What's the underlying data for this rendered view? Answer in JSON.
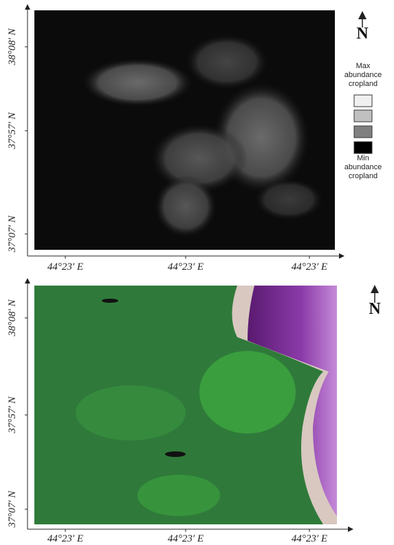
{
  "panels": [
    {
      "y_axis_labels": [
        "38°08′ N",
        "37°57′ N",
        "37°07′ N"
      ],
      "x_axis_labels": [
        "44°23′ E",
        "44°23′ E",
        "44°23′ E"
      ],
      "north_label": "N",
      "legend": {
        "max_label": "Max abundance cropland",
        "min_label": "Min abundance cropland"
      }
    },
    {
      "y_axis_labels": [
        "38°08′ N",
        "37°57′ N",
        "37°07′ N"
      ],
      "x_axis_labels": [
        "44°23′ E",
        "44°23′ E",
        "44°23′ E"
      ],
      "north_label": "N"
    }
  ]
}
